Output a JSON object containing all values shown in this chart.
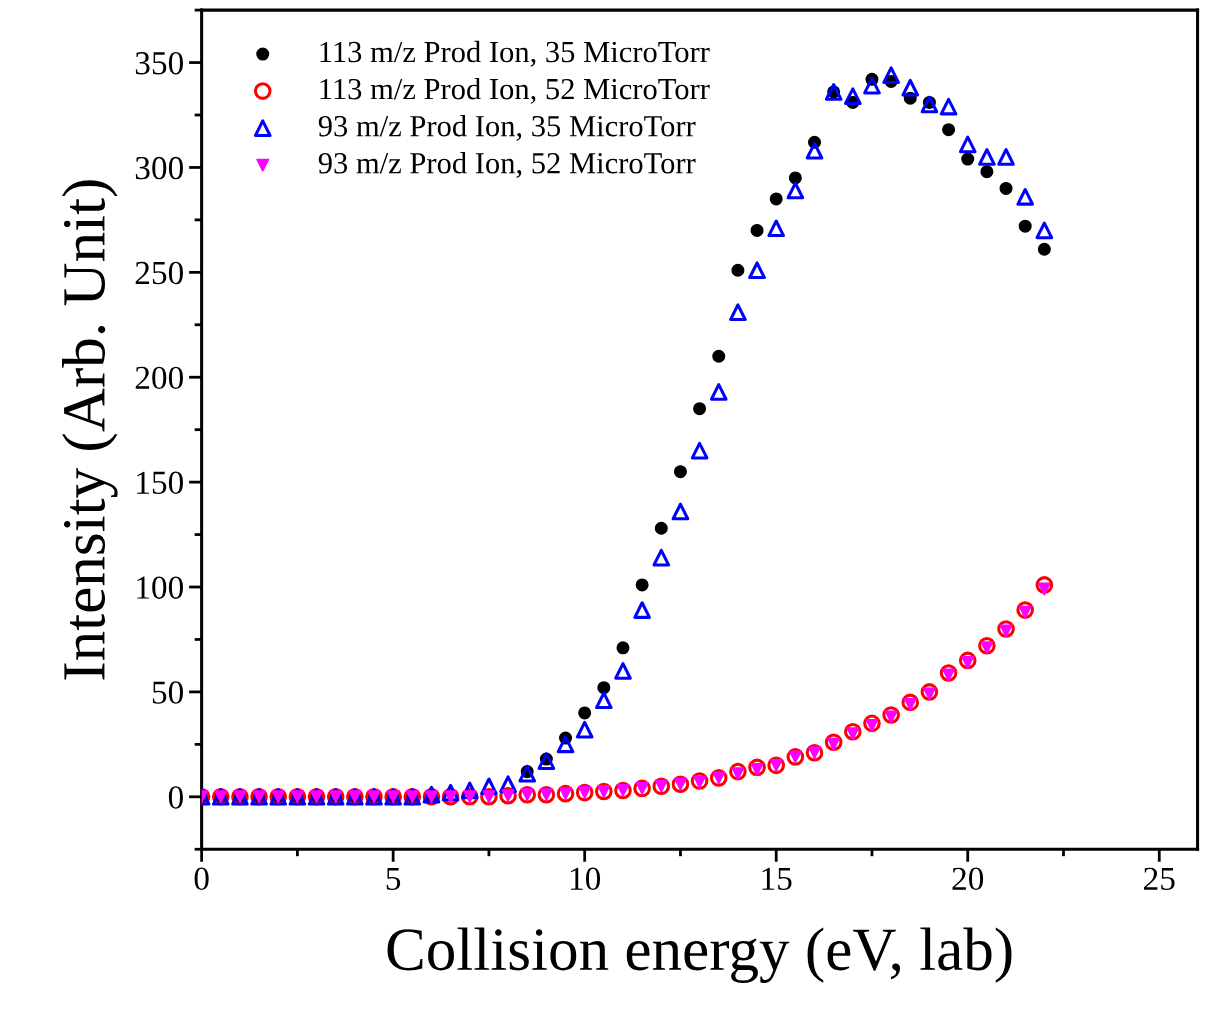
{
  "chart_data": {
    "type": "scatter",
    "xlabel": "Collision energy (eV, lab)",
    "ylabel": "Intensity (Arb. Unit)",
    "x": [
      0,
      0.5,
      1,
      1.5,
      2,
      2.5,
      3,
      3.5,
      4,
      4.5,
      5,
      5.5,
      6,
      6.5,
      7,
      7.5,
      8,
      8.5,
      9,
      9.5,
      10,
      10.5,
      11,
      11.5,
      12,
      12.5,
      13,
      13.5,
      14,
      14.5,
      15,
      15.5,
      16,
      16.5,
      17,
      17.5,
      18,
      18.5,
      19,
      19.5,
      20,
      20.5,
      21,
      21.5,
      22
    ],
    "series": [
      {
        "name": "113 m/z Prod Ion, 35 MicroTorr",
        "color": "#000000",
        "marker": "circle",
        "values": [
          0,
          0,
          0,
          0,
          0,
          0,
          0,
          0,
          0,
          0,
          0,
          0,
          0,
          null,
          null,
          null,
          null,
          12,
          18,
          28,
          40,
          52,
          71,
          101,
          128,
          155,
          185,
          210,
          251,
          270,
          285,
          295,
          312,
          336,
          331,
          342,
          341,
          333,
          331,
          318,
          304,
          298,
          290,
          272,
          261
        ]
      },
      {
        "name": "113 m/z Prod Ion, 52 MicroTorr",
        "color": "#ff0000",
        "marker": "circle_open",
        "values": [
          0,
          0,
          0,
          0,
          0,
          0,
          0,
          0,
          0,
          0,
          0,
          0,
          0,
          0,
          0,
          0,
          0.5,
          1,
          1,
          1.5,
          2,
          2.5,
          3,
          4,
          5,
          6,
          7.5,
          9,
          12,
          14,
          15,
          19,
          21,
          26,
          31,
          35,
          39,
          45,
          50,
          59,
          65,
          72,
          80,
          89,
          101
        ]
      },
      {
        "name": "93 m/z Prod Ion, 35 MicroTorr",
        "color": "#0000ff",
        "marker": "triangle",
        "values": [
          0,
          0,
          0,
          0,
          0,
          0,
          0,
          0,
          0,
          0,
          0,
          0,
          1,
          2,
          3,
          5,
          6,
          11,
          17,
          25,
          32,
          46,
          60,
          89,
          114,
          136,
          165,
          193,
          231,
          251,
          271,
          289,
          308,
          336,
          334,
          339,
          344,
          338,
          330,
          329,
          311,
          305,
          305,
          286,
          270
        ]
      },
      {
        "name": "93 m/z Prod Ion, 52 MicroTorr",
        "color": "#ff00ff",
        "marker": "triangle_down",
        "values": [
          0,
          0,
          0,
          0,
          0,
          0,
          0,
          0,
          0,
          0,
          0,
          0,
          0,
          0,
          0,
          0,
          0.5,
          1,
          1,
          1.5,
          2,
          2.5,
          3,
          4,
          5,
          6,
          7,
          9,
          11,
          13,
          15,
          19,
          21,
          25,
          30,
          34,
          38,
          44,
          49,
          58,
          64,
          71,
          79,
          88,
          99
        ]
      }
    ],
    "xlim": [
      0,
      26
    ],
    "xticks": [
      0,
      5,
      10,
      15,
      20,
      25
    ],
    "ylim": [
      -25,
      375
    ],
    "yticks": [
      0,
      50,
      100,
      150,
      200,
      250,
      300,
      350
    ],
    "grid": false,
    "legend": "top left"
  }
}
